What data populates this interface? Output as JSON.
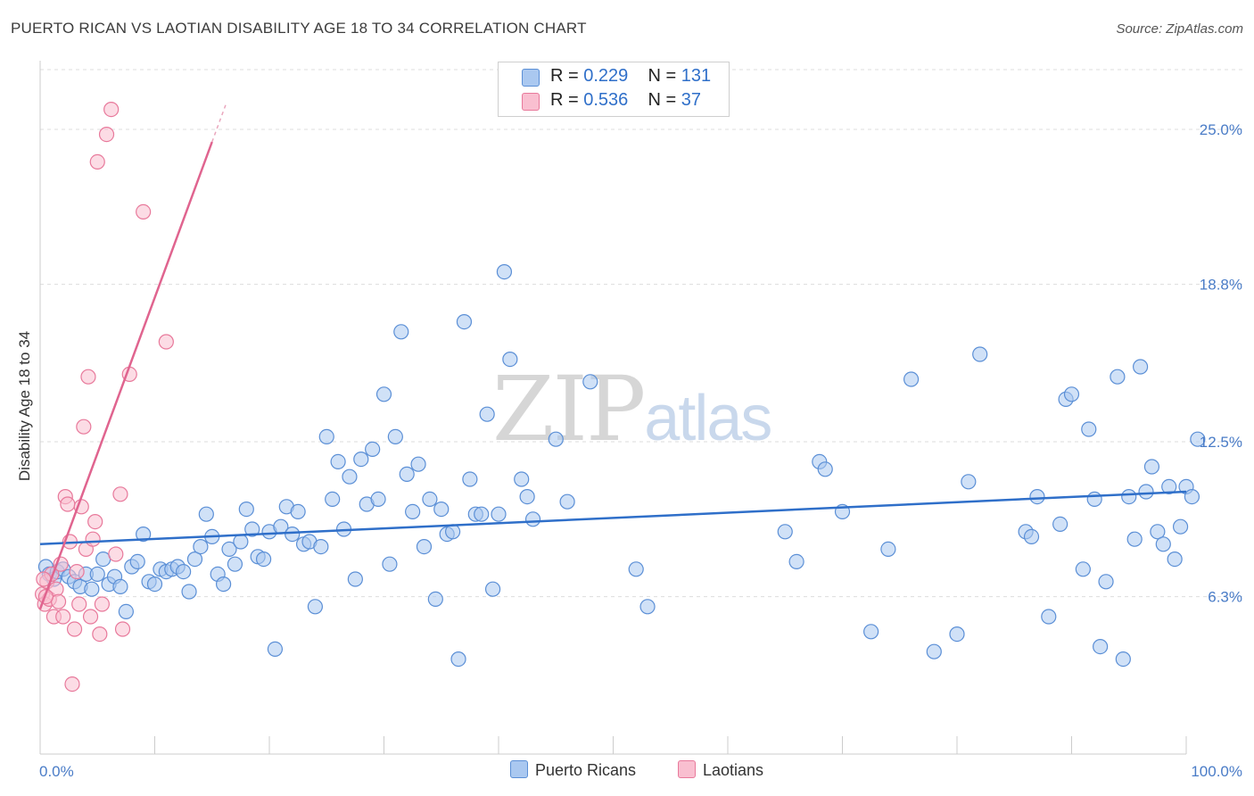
{
  "title": "PUERTO RICAN VS LAOTIAN DISABILITY AGE 18 TO 34 CORRELATION CHART",
  "source": "Source: ZipAtlas.com",
  "watermark": {
    "zip": "ZIP",
    "atlas": "atlas"
  },
  "legend": {
    "r_label": "R = ",
    "n_label": "N = ",
    "series": [
      {
        "name": "Puerto Ricans",
        "r": "0.229",
        "n": "131",
        "fill": "#aac8f0",
        "stroke": "#5b8fd6"
      },
      {
        "name": "Laotians",
        "r": "0.536",
        "n": "37",
        "fill": "#f9bfd0",
        "stroke": "#e8799b"
      }
    ]
  },
  "colors": {
    "blue_line": "#2f6fc9",
    "pink_line": "#e0648f",
    "grid": "#dddddd",
    "axis_text": "#4a7cc7"
  },
  "chart_data": {
    "type": "scatter",
    "title": "PUERTO RICAN VS LAOTIAN DISABILITY AGE 18 TO 34 CORRELATION CHART",
    "xlabel": "",
    "ylabel": "Disability Age 18 to 34",
    "xlim": [
      0,
      100
    ],
    "ylim": [
      0,
      27.5
    ],
    "x_tick_labels": [
      "0.0%",
      "100.0%"
    ],
    "y_ticks": [
      6.3,
      12.5,
      18.8,
      25.0
    ],
    "y_tick_labels": [
      "6.3%",
      "12.5%",
      "18.8%",
      "25.0%"
    ],
    "grid": true,
    "legend_position": "top-center",
    "series": [
      {
        "name": "Puerto Ricans",
        "trend": {
          "x": [
            0,
            100
          ],
          "y": [
            8.4,
            10.5
          ]
        },
        "points": [
          [
            0.5,
            7.5
          ],
          [
            0.8,
            7.2
          ],
          [
            1.2,
            7.0
          ],
          [
            1.5,
            7.3
          ],
          [
            2.0,
            7.4
          ],
          [
            2.5,
            7.1
          ],
          [
            3.0,
            6.9
          ],
          [
            3.5,
            6.7
          ],
          [
            4.0,
            7.2
          ],
          [
            4.5,
            6.6
          ],
          [
            5.0,
            7.2
          ],
          [
            5.5,
            7.8
          ],
          [
            6.0,
            6.8
          ],
          [
            6.5,
            7.1
          ],
          [
            7.0,
            6.7
          ],
          [
            7.5,
            5.7
          ],
          [
            8.0,
            7.5
          ],
          [
            8.5,
            7.7
          ],
          [
            9.0,
            8.8
          ],
          [
            9.5,
            6.9
          ],
          [
            10.0,
            6.8
          ],
          [
            10.5,
            7.4
          ],
          [
            11.0,
            7.3
          ],
          [
            11.5,
            7.4
          ],
          [
            12.0,
            7.5
          ],
          [
            12.5,
            7.3
          ],
          [
            13.0,
            6.5
          ],
          [
            13.5,
            7.8
          ],
          [
            14.0,
            8.3
          ],
          [
            14.5,
            9.6
          ],
          [
            15.0,
            8.7
          ],
          [
            15.5,
            7.2
          ],
          [
            16.0,
            6.8
          ],
          [
            16.5,
            8.2
          ],
          [
            17.0,
            7.6
          ],
          [
            17.5,
            8.5
          ],
          [
            18.0,
            9.8
          ],
          [
            18.5,
            9.0
          ],
          [
            19.0,
            7.9
          ],
          [
            19.5,
            7.8
          ],
          [
            20.0,
            8.9
          ],
          [
            20.5,
            4.2
          ],
          [
            21.0,
            9.1
          ],
          [
            21.5,
            9.9
          ],
          [
            22.0,
            8.8
          ],
          [
            22.5,
            9.7
          ],
          [
            23.0,
            8.4
          ],
          [
            23.5,
            8.5
          ],
          [
            24.0,
            5.9
          ],
          [
            24.5,
            8.3
          ],
          [
            25.0,
            12.7
          ],
          [
            25.5,
            10.2
          ],
          [
            26.0,
            11.7
          ],
          [
            26.5,
            9.0
          ],
          [
            27.0,
            11.1
          ],
          [
            27.5,
            7.0
          ],
          [
            28.0,
            11.8
          ],
          [
            28.5,
            10.0
          ],
          [
            29.0,
            12.2
          ],
          [
            29.5,
            10.2
          ],
          [
            30.0,
            14.4
          ],
          [
            30.5,
            7.6
          ],
          [
            31.0,
            12.7
          ],
          [
            31.5,
            16.9
          ],
          [
            32.0,
            11.2
          ],
          [
            32.5,
            9.7
          ],
          [
            33.0,
            11.6
          ],
          [
            33.5,
            8.3
          ],
          [
            34.0,
            10.2
          ],
          [
            34.5,
            6.2
          ],
          [
            35.0,
            9.8
          ],
          [
            35.5,
            8.8
          ],
          [
            36.0,
            8.9
          ],
          [
            36.5,
            3.8
          ],
          [
            37.0,
            17.3
          ],
          [
            37.5,
            11.0
          ],
          [
            38.0,
            9.6
          ],
          [
            38.5,
            9.6
          ],
          [
            39.0,
            13.6
          ],
          [
            39.5,
            6.6
          ],
          [
            40.0,
            9.6
          ],
          [
            40.5,
            19.3
          ],
          [
            41.0,
            15.8
          ],
          [
            42.0,
            11.0
          ],
          [
            42.5,
            10.3
          ],
          [
            43.0,
            9.4
          ],
          [
            44.0,
            26.0
          ],
          [
            45.0,
            12.6
          ],
          [
            46.0,
            10.1
          ],
          [
            48.0,
            14.9
          ],
          [
            52.0,
            7.4
          ],
          [
            53.0,
            5.9
          ],
          [
            65.0,
            8.9
          ],
          [
            66.0,
            7.7
          ],
          [
            68.0,
            11.7
          ],
          [
            68.5,
            11.4
          ],
          [
            70.0,
            9.7
          ],
          [
            72.5,
            4.9
          ],
          [
            74.0,
            8.2
          ],
          [
            76.0,
            15.0
          ],
          [
            78.0,
            4.1
          ],
          [
            80.0,
            4.8
          ],
          [
            81.0,
            10.9
          ],
          [
            82.0,
            16.0
          ],
          [
            86.0,
            8.9
          ],
          [
            86.5,
            8.7
          ],
          [
            87.0,
            10.3
          ],
          [
            88.0,
            5.5
          ],
          [
            89.0,
            9.2
          ],
          [
            89.5,
            14.2
          ],
          [
            90.0,
            14.4
          ],
          [
            91.0,
            7.4
          ],
          [
            91.5,
            13.0
          ],
          [
            92.0,
            10.2
          ],
          [
            92.5,
            4.3
          ],
          [
            93.0,
            6.9
          ],
          [
            94.0,
            15.1
          ],
          [
            94.5,
            3.8
          ],
          [
            95.0,
            10.3
          ],
          [
            95.5,
            8.6
          ],
          [
            96.0,
            15.5
          ],
          [
            96.5,
            10.5
          ],
          [
            97.0,
            11.5
          ],
          [
            97.5,
            8.9
          ],
          [
            98.0,
            8.4
          ],
          [
            98.5,
            10.7
          ],
          [
            99.0,
            7.8
          ],
          [
            99.5,
            9.1
          ],
          [
            100.0,
            10.7
          ],
          [
            100.5,
            10.3
          ],
          [
            101.0,
            12.6
          ]
        ]
      },
      {
        "name": "Laotians",
        "trend": {
          "x": [
            0,
            15
          ],
          "y": [
            5.8,
            24.5
          ]
        },
        "points": [
          [
            0.2,
            6.4
          ],
          [
            0.4,
            6.0
          ],
          [
            0.6,
            6.9
          ],
          [
            0.8,
            6.2
          ],
          [
            1.0,
            7.2
          ],
          [
            1.2,
            5.5
          ],
          [
            1.4,
            6.6
          ],
          [
            1.6,
            6.1
          ],
          [
            1.8,
            7.6
          ],
          [
            2.0,
            5.5
          ],
          [
            2.2,
            10.3
          ],
          [
            2.4,
            10.0
          ],
          [
            2.6,
            8.5
          ],
          [
            2.8,
            2.8
          ],
          [
            3.0,
            5.0
          ],
          [
            3.2,
            7.3
          ],
          [
            3.4,
            6.0
          ],
          [
            3.6,
            9.9
          ],
          [
            3.8,
            13.1
          ],
          [
            4.0,
            8.2
          ],
          [
            4.2,
            15.1
          ],
          [
            4.4,
            5.5
          ],
          [
            4.6,
            8.6
          ],
          [
            4.8,
            9.3
          ],
          [
            5.0,
            23.7
          ],
          [
            5.2,
            4.8
          ],
          [
            5.4,
            6.0
          ],
          [
            5.8,
            24.8
          ],
          [
            6.2,
            25.8
          ],
          [
            6.6,
            8.0
          ],
          [
            7.0,
            10.4
          ],
          [
            7.2,
            5.0
          ],
          [
            7.8,
            15.2
          ],
          [
            9.0,
            21.7
          ],
          [
            11.0,
            16.5
          ],
          [
            0.3,
            7.0
          ],
          [
            0.5,
            6.3
          ]
        ]
      }
    ]
  },
  "bottom_legend": [
    "Puerto Ricans",
    "Laotians"
  ]
}
